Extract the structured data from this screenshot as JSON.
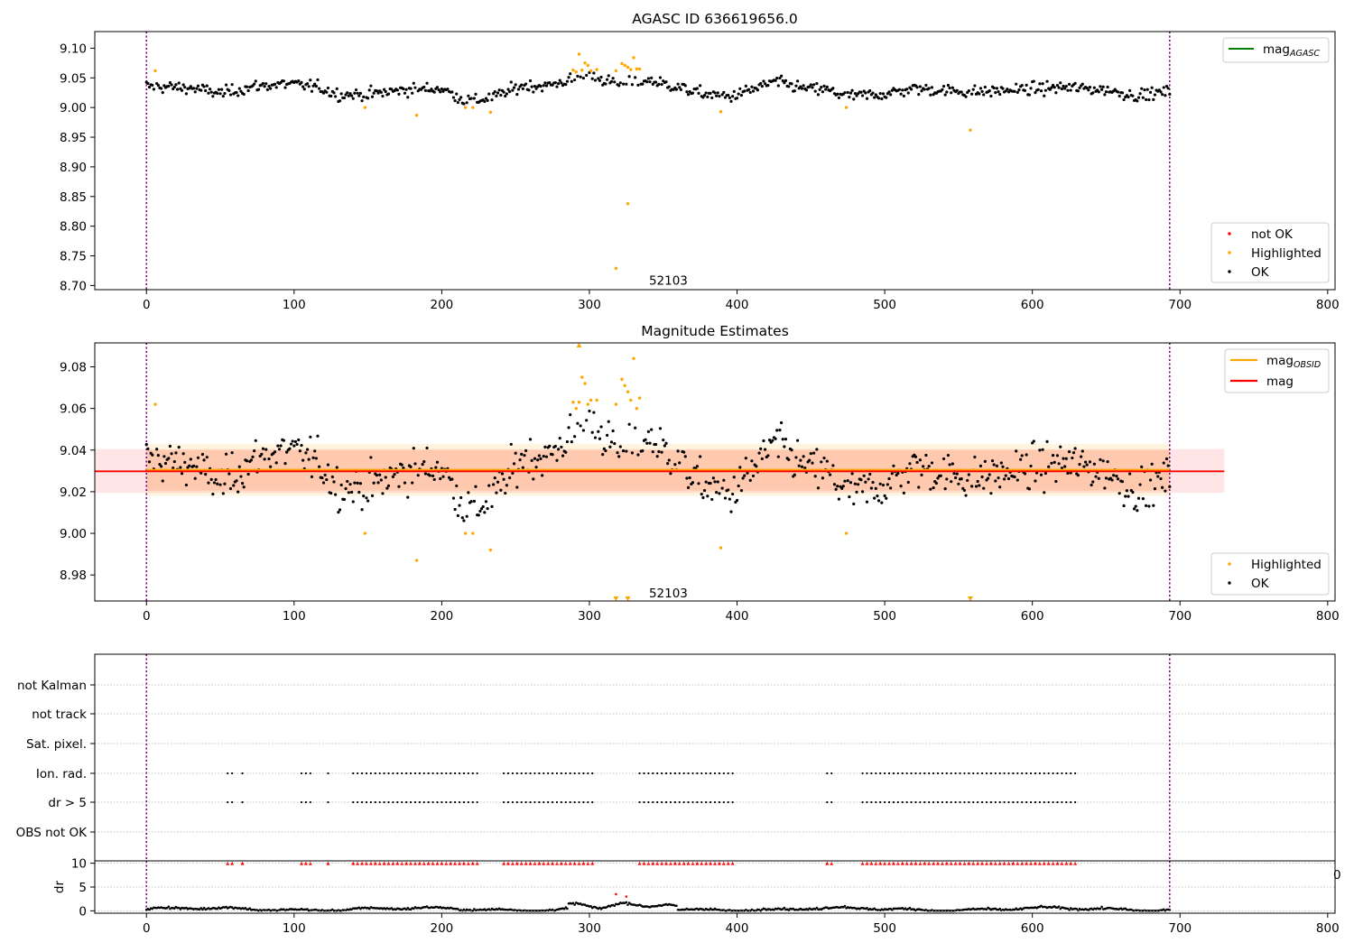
{
  "chart_data": [
    {
      "type": "scatter",
      "title": "AGASC ID 636619656.0",
      "xlim": [
        -35,
        805
      ],
      "ylim": [
        8.693,
        9.128
      ],
      "xticks": [
        0,
        100,
        200,
        300,
        400,
        500,
        600,
        700,
        800
      ],
      "xtick_labels": [
        "0",
        "100",
        "200",
        "300",
        "400",
        "500",
        "600",
        "700",
        "800"
      ],
      "yticks": [
        8.7,
        8.75,
        8.8,
        8.85,
        8.9,
        8.95,
        9.0,
        9.05,
        9.1
      ],
      "ytick_labels": [
        "8.70",
        "8.75",
        "8.80",
        "8.85",
        "8.90",
        "8.95",
        "9.00",
        "9.05",
        "9.10"
      ],
      "vlines": [
        0,
        693
      ],
      "annotation": {
        "text": "52103",
        "x": 333,
        "y": 8.709
      },
      "legend_lines": [
        {
          "label": "mag",
          "sub": "AGASC",
          "color": "#008000"
        }
      ],
      "legend_points": [
        {
          "label": "not OK",
          "color": "#ff0000"
        },
        {
          "label": "Highlighted",
          "color": "#ffa500"
        },
        {
          "label": "OK",
          "color": "#000000"
        }
      ],
      "baseline": 9.03,
      "highlighted": {
        "x": [
          6,
          148,
          183,
          216,
          221,
          233,
          289,
          291,
          293,
          295,
          297,
          299,
          301,
          305,
          318,
          322,
          324,
          326,
          328,
          330,
          332,
          334,
          389,
          474,
          558,
          326,
          318
        ],
        "y": [
          9.062,
          9.0,
          8.987,
          9.0,
          9.0,
          8.992,
          9.063,
          9.06,
          9.09,
          9.063,
          9.075,
          9.071,
          9.062,
          9.064,
          9.062,
          9.074,
          9.071,
          9.068,
          9.064,
          9.084,
          9.065,
          9.065,
          8.993,
          9.0,
          8.962,
          8.838,
          8.729
        ]
      }
    },
    {
      "type": "scatter",
      "title": "Magnitude Estimates",
      "xlim": [
        -35,
        805
      ],
      "ylim": [
        8.9675,
        9.0915
      ],
      "xticks": [
        0,
        100,
        200,
        300,
        400,
        500,
        600,
        700,
        800
      ],
      "xtick_labels": [
        "0",
        "100",
        "200",
        "300",
        "400",
        "500",
        "600",
        "700",
        "800"
      ],
      "yticks": [
        8.98,
        9.0,
        9.02,
        9.04,
        9.06,
        9.08
      ],
      "ytick_labels": [
        "8.98",
        "9.00",
        "9.02",
        "9.04",
        "9.06",
        "9.08"
      ],
      "vlines": [
        0,
        693
      ],
      "annotation": {
        "text": "52103",
        "x": 333,
        "y": 8.9715
      },
      "legend_lines": [
        {
          "label": "mag",
          "sub": "OBSID",
          "color": "#ffa500"
        },
        {
          "label": "mag",
          "sub": "",
          "color": "#ff0000"
        }
      ],
      "legend_points": [
        {
          "label": "Highlighted",
          "color": "#ffa500"
        },
        {
          "label": "OK",
          "color": "#000000"
        }
      ],
      "mag": 9.0298,
      "mag_band": [
        9.0195,
        9.0405
      ],
      "mag_obsid": 9.0305,
      "mag_obsid_band": [
        9.018,
        9.043
      ],
      "mag_obsid_inner": [
        9.0205,
        9.04
      ],
      "highlighted": {
        "x": [
          6,
          148,
          183,
          216,
          221,
          233,
          289,
          291,
          293,
          295,
          297,
          299,
          301,
          305,
          318,
          322,
          324,
          326,
          328,
          330,
          332,
          334,
          389,
          474
        ],
        "y": [
          9.062,
          9.0,
          8.987,
          9.0,
          9.0,
          8.992,
          9.063,
          9.06,
          9.063,
          9.075,
          9.072,
          9.062,
          9.064,
          9.064,
          9.062,
          9.074,
          9.071,
          9.068,
          9.064,
          9.084,
          9.06,
          9.065,
          8.993,
          9.0
        ]
      },
      "upper_markers": {
        "x": [
          293
        ],
        "color": "#ffa500"
      },
      "lower_markers": {
        "x": [
          318,
          326,
          558
        ],
        "color": "#ffa500"
      }
    },
    {
      "type": "scatter",
      "xlim": [
        -35,
        805
      ],
      "vlines": [
        0,
        693
      ],
      "flag_rows": [
        "not Kalman",
        "not track",
        "Sat. pixel.",
        "Ion. rad.",
        "dr > 5",
        "OBS not OK"
      ],
      "flag_ranges": [
        [
          55,
          60
        ],
        [
          65,
          67
        ],
        [
          105,
          111
        ],
        [
          123,
          124
        ],
        [
          140,
          225
        ],
        [
          242,
          303
        ],
        [
          334,
          398
        ],
        [
          461,
          465
        ],
        [
          485,
          630
        ]
      ],
      "flagged_rows": [
        "Ion. rad.",
        "dr > 5"
      ]
    },
    {
      "type": "scatter",
      "ylabel": "dr",
      "xlim": [
        -35,
        805
      ],
      "ylim": [
        -0.5,
        10.5
      ],
      "xticks": [
        0,
        100,
        200,
        300,
        400,
        500,
        600,
        700,
        800
      ],
      "xtick_labels": [
        "0",
        "100",
        "200",
        "300",
        "400",
        "500",
        "600",
        "700",
        "800"
      ],
      "yticks": [
        0,
        5,
        10
      ],
      "ytick_labels": [
        "0",
        "5",
        "10"
      ],
      "vlines": [
        0,
        693
      ],
      "red_points": {
        "x": [
          318,
          325
        ],
        "y": [
          3.5,
          3.0
        ]
      },
      "clip_markers": {
        "y": 10,
        "color": "#ff0000"
      },
      "edge_fragment": "0"
    }
  ]
}
